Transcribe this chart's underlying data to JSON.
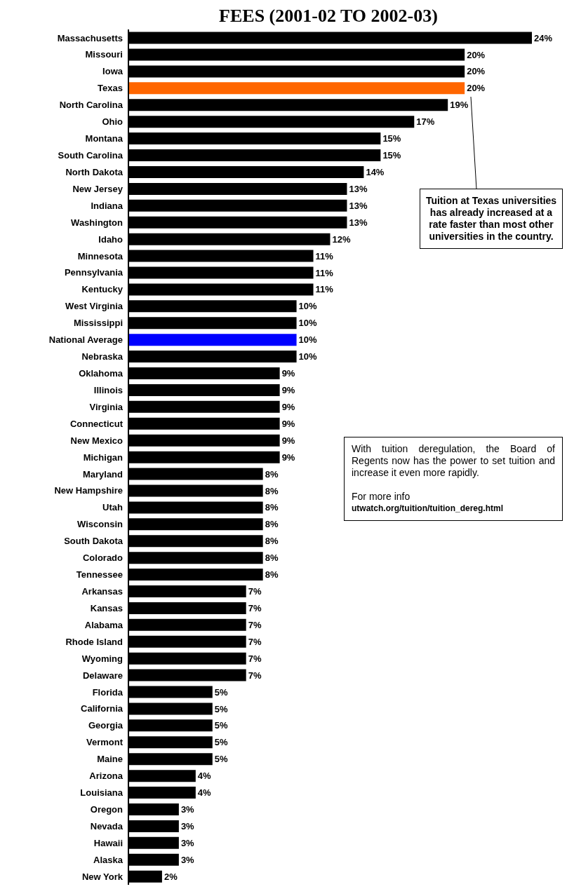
{
  "chart_data": {
    "type": "bar",
    "orientation": "horizontal",
    "title": "FEES (2001-02 TO 2002-03)",
    "categories": [
      "Massachusetts",
      "Missouri",
      "Iowa",
      "Texas",
      "North Carolina",
      "Ohio",
      "Montana",
      "South Carolina",
      "North Dakota",
      "New Jersey",
      "Indiana",
      "Washington",
      "Idaho",
      "Minnesota",
      "Pennsylvania",
      "Kentucky",
      "West Virginia",
      "Mississippi",
      "National Average",
      "Nebraska",
      "Oklahoma",
      "Illinois",
      "Virginia",
      "Connecticut",
      "New Mexico",
      "Michigan",
      "Maryland",
      "New Hampshire",
      "Utah",
      "Wisconsin",
      "South Dakota",
      "Colorado",
      "Tennessee",
      "Arkansas",
      "Kansas",
      "Alabama",
      "Rhode Island",
      "Wyoming",
      "Delaware",
      "Florida",
      "California",
      "Georgia",
      "Vermont",
      "Maine",
      "Arizona",
      "Louisiana",
      "Oregon",
      "Nevada",
      "Hawaii",
      "Alaska",
      "New York"
    ],
    "values": [
      24,
      20,
      20,
      20,
      19,
      17,
      15,
      15,
      14,
      13,
      13,
      13,
      12,
      11,
      11,
      11,
      10,
      10,
      10,
      10,
      9,
      9,
      9,
      9,
      9,
      9,
      8,
      8,
      8,
      8,
      8,
      8,
      8,
      7,
      7,
      7,
      7,
      7,
      7,
      5,
      5,
      5,
      5,
      5,
      4,
      4,
      3,
      3,
      3,
      3,
      2
    ],
    "value_labels": [
      "24%",
      "20%",
      "20%",
      "20%",
      "19%",
      "17%",
      "15%",
      "15%",
      "14%",
      "13%",
      "13%",
      "13%",
      "12%",
      "11%",
      "11%",
      "11%",
      "10%",
      "10%",
      "10%",
      "10%",
      "9%",
      "9%",
      "9%",
      "9%",
      "9%",
      "9%",
      "8%",
      "8%",
      "8%",
      "8%",
      "8%",
      "8%",
      "8%",
      "7%",
      "7%",
      "7%",
      "7%",
      "7%",
      "7%",
      "5%",
      "5%",
      "5%",
      "5%",
      "5%",
      "4%",
      "4%",
      "3%",
      "3%",
      "3%",
      "3%",
      "2%"
    ],
    "colors": [
      "#000000",
      "#000000",
      "#000000",
      "#ff6600",
      "#000000",
      "#000000",
      "#000000",
      "#000000",
      "#000000",
      "#000000",
      "#000000",
      "#000000",
      "#000000",
      "#000000",
      "#000000",
      "#000000",
      "#000000",
      "#000000",
      "#0000ff",
      "#000000",
      "#000000",
      "#000000",
      "#000000",
      "#000000",
      "#000000",
      "#000000",
      "#000000",
      "#000000",
      "#000000",
      "#000000",
      "#000000",
      "#000000",
      "#000000",
      "#000000",
      "#000000",
      "#000000",
      "#000000",
      "#000000",
      "#000000",
      "#000000",
      "#000000",
      "#000000",
      "#000000",
      "#000000",
      "#000000",
      "#000000",
      "#000000",
      "#000000",
      "#000000",
      "#000000",
      "#000000"
    ],
    "annotations": [
      "Tuition at Texas universities has already increased at a rate faster than most other universities in the country.",
      "With tuition deregulation, the Board of Regents now has the power to set tuition and increase it even more rapidly.",
      "For more info",
      "utwatch.org/tuition/tuition_dereg.html"
    ]
  }
}
